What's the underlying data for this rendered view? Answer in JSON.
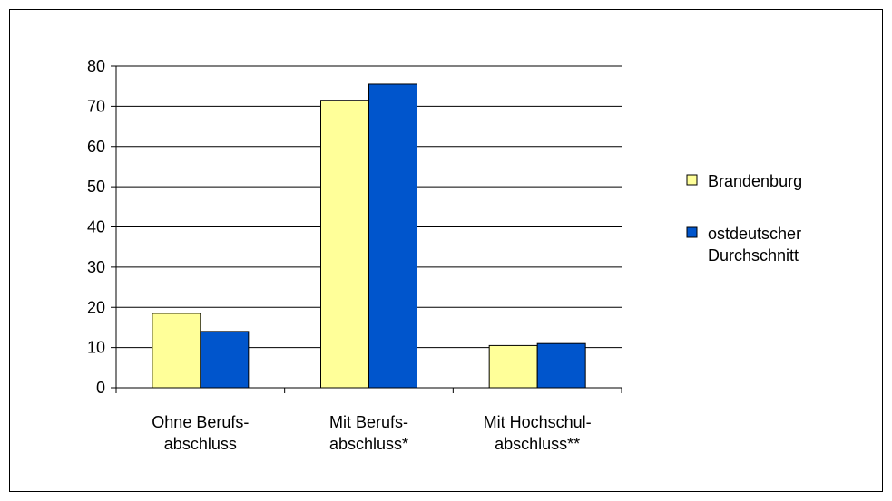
{
  "chart_data": {
    "type": "bar",
    "categories": [
      "Ohne Berufs-\nabschluss",
      "Mit Berufs-\nabschluss*",
      "Mit Hochschul-\nabschluss**"
    ],
    "series": [
      {
        "name": "Brandenburg",
        "color": "#ffff99",
        "values": [
          18.5,
          71.5,
          10.5
        ]
      },
      {
        "name": "ostdeutscher\nDurchschnitt",
        "color": "#0055cc",
        "values": [
          14,
          75.5,
          11
        ]
      }
    ],
    "ylim": [
      0,
      80
    ],
    "yticks": [
      0,
      10,
      20,
      30,
      40,
      50,
      60,
      70,
      80
    ],
    "grid": true,
    "legend": "right"
  }
}
